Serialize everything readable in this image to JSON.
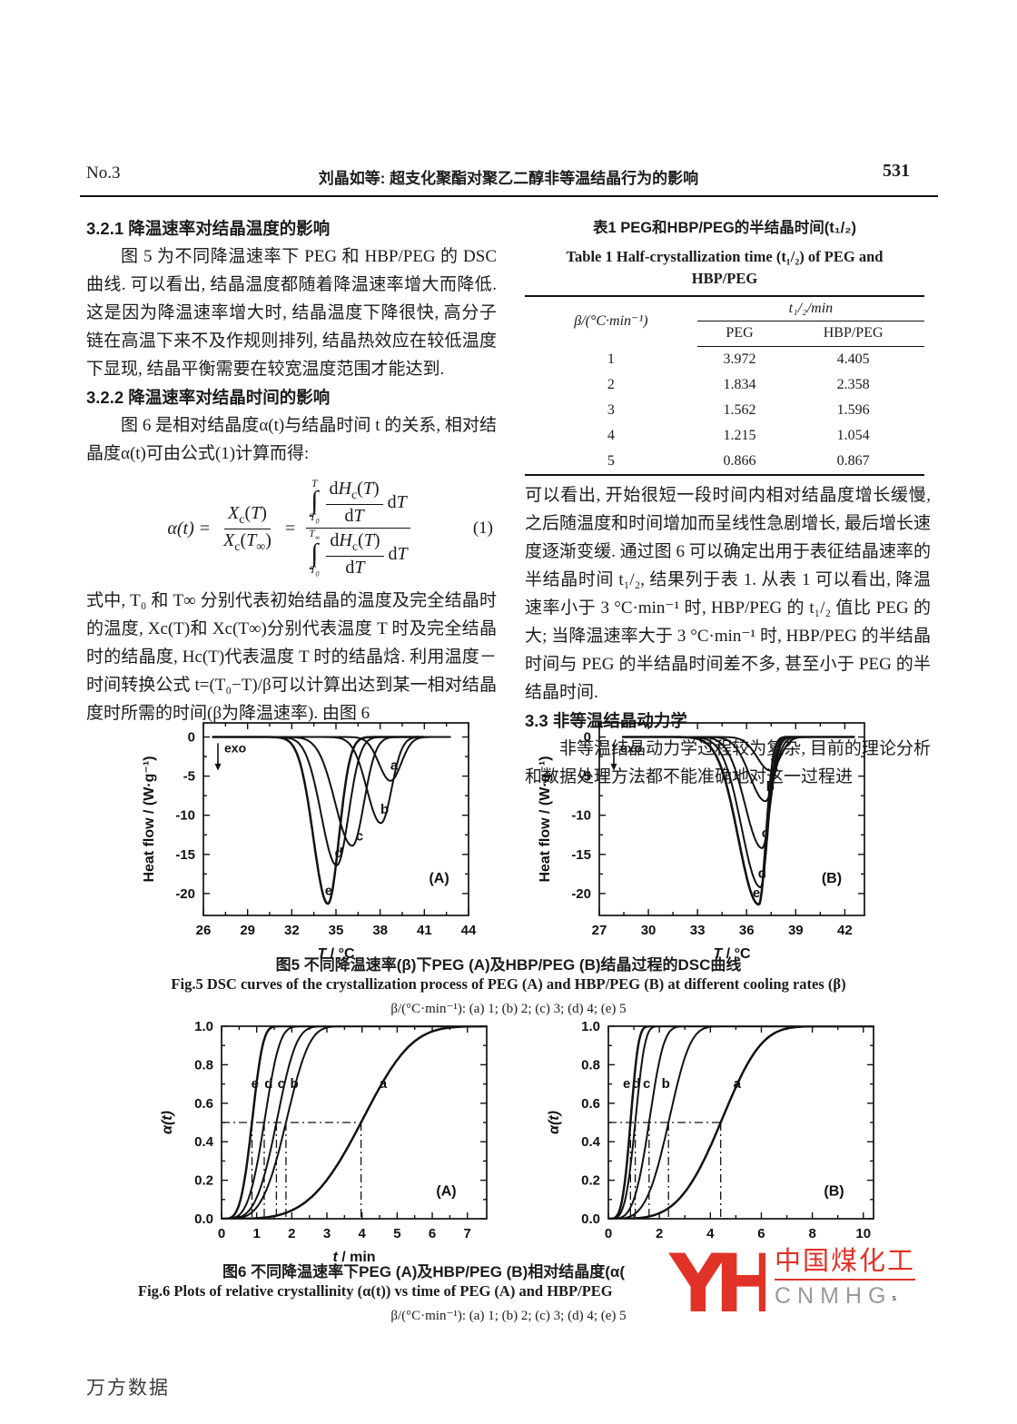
{
  "page": {
    "no": "No.3",
    "header_title": "刘晶如等: 超支化聚酯对聚乙二醇非等温结晶行为的影响",
    "page_number": "531",
    "footer": "万方数据"
  },
  "left": {
    "h321": "3.2.1  降温速率对结晶温度的影响",
    "p321": "图 5 为不同降温速率下 PEG 和 HBP/PEG 的 DSC 曲线. 可以看出, 结晶温度都随着降温速率增大而降低. 这是因为降温速率增大时, 结晶温度下降很快, 高分子链在高温下来不及作规则排列, 结晶热效应在较低温度下显现, 结晶平衡需要在较宽温度范围才能达到.",
    "h322": "3.2.2  降温速率对结晶时间的影响",
    "p322": "图 6 是相对结晶度α(t)与结晶时间 t 的关系, 相对结晶度α(t)可由公式(1)计算而得:",
    "p_after_eq": "式中, T₀ 和 T∞ 分别代表初始结晶的温度及完全结晶时的温度, Xc(T)和 Xc(T∞)分别代表温度 T 时及完全结晶时的结晶度, Hc(T)代表温度 T 时的结晶焓. 利用温度－时间转换公式 t=(T₀−T)/β可以计算出达到某一相对结晶度时所需的时间(β为降温速率). 由图 6"
  },
  "eq": {
    "alpha": "α(t)",
    "equals": "=",
    "X": "X",
    "sub_c": "c",
    "T": "T",
    "lp": "(",
    "rp": ")",
    "inf": "∞",
    "sub0": "0",
    "int": "∫",
    "d": "d",
    "H": "H",
    "no": "(1)"
  },
  "right": {
    "p1": "可以看出, 开始很短一段时间内相对结晶度增长缓慢, 之后随温度和时间增加而呈线性急剧增长, 最后增长速度逐渐变缓. 通过图 6 可以确定出用于表征结晶速率的半结晶时间 t₁/₂, 结果列于表 1. 从表 1 可以看出, 降温速率小于 3 °C·min⁻¹ 时, HBP/PEG 的 t₁/₂ 值比 PEG 的大; 当降温速率大于 3 °C·min⁻¹ 时, HBP/PEG 的半结晶时间与 PEG 的半结晶时间差不多, 甚至小于 PEG 的半结晶时间.",
    "h33": "3.3  非等温结晶动力学",
    "p33": "非等温结晶动力学过程较为复杂, 目前的理论分析和数据处理方法都不能准确地对这一过程进"
  },
  "table1": {
    "title_zh": "表1  PEG和HBP/PEG的半结晶时间(t₁/₂)",
    "title_en1": "Table 1  Half-crystallization time (t₁/₂) of PEG and",
    "title_en2": "HBP/PEG",
    "col_beta": "β/(°C·min⁻¹)",
    "col_t12": "t₁/₂/min",
    "col_peg": "PEG",
    "col_hbp": "HBP/PEG",
    "rows": [
      {
        "beta": "1",
        "peg": "3.972",
        "hbp": "4.405"
      },
      {
        "beta": "2",
        "peg": "1.834",
        "hbp": "2.358"
      },
      {
        "beta": "3",
        "peg": "1.562",
        "hbp": "1.596"
      },
      {
        "beta": "4",
        "peg": "1.215",
        "hbp": "1.054"
      },
      {
        "beta": "5",
        "peg": "0.866",
        "hbp": "0.867"
      }
    ]
  },
  "fig5": {
    "caption_zh": "图5  不同降温速率(β)下PEG (A)及HBP/PEG (B)结晶过程的DSC曲线",
    "caption_en": "Fig.5  DSC curves of the crystallization process of PEG (A) and HBP/PEG (B) at different cooling rates (β)",
    "caption_cond": "β/(°C·min⁻¹): (a) 1; (b) 2; (c) 3; (d) 4; (e) 5"
  },
  "fig6": {
    "caption_zh": "图6  不同降温速率下PEG (A)及HBP/PEG (B)相对结晶度(α(",
    "caption_en": "Fig.6  Plots of relative crystallinity (α(t)) vs time of PEG (A) and HBP/PEG",
    "caption_cond": "β/(°C·min⁻¹): (a) 1; (b) 2; (c) 3; (d) 4; (e) 5"
  },
  "watermark": {
    "monogram": "YH",
    "brand_zh": "中国煤化工",
    "brand_en": "CNMHG",
    "mark": "ˢ",
    "brand_color": "#e03226",
    "en_color": "#9a9a9a"
  },
  "chart_data": [
    {
      "id": "fig5A",
      "type": "dsc",
      "panel": "(A)",
      "panel_at": [
        42.0,
        -18.6
      ],
      "xlim": [
        26,
        44
      ],
      "ylim": [
        -22.8,
        1.8
      ],
      "xticks": [
        26,
        29,
        32,
        35,
        38,
        41,
        44
      ],
      "xtick_labels": [
        "26",
        "29",
        "32",
        "35",
        "38",
        "41",
        "44"
      ],
      "yticks": [
        0,
        -5,
        -10,
        -15,
        -20
      ],
      "ytick_labels": [
        "0",
        "-5",
        "-10",
        "-15",
        "-20"
      ],
      "xlabel_var": "T",
      "xlabel_rest": " / °C",
      "ylabel": "Heat flow / (W·g⁻¹)",
      "ylabel_italic": false,
      "exo_label": "exo",
      "curves": [
        {
          "name": "a",
          "center": 38.7,
          "depth": 5.6,
          "sl": 0.78,
          "sr": 0.72,
          "x0": 33.6,
          "x1": 42.8,
          "lw": 2,
          "label_at": [
            38.95,
            -4.2
          ]
        },
        {
          "name": "b",
          "center": 38.05,
          "depth": 11.0,
          "sl": 0.95,
          "sr": 0.72,
          "x0": 31.2,
          "x1": 42.8,
          "lw": 2,
          "label_at": [
            38.3,
            -9.8
          ]
        },
        {
          "name": "c",
          "center": 36.1,
          "depth": 13.9,
          "sl": 1.15,
          "sr": 0.8,
          "x0": 26.6,
          "x1": 41.6,
          "lw": 2,
          "label_at": [
            36.6,
            -13.2
          ]
        },
        {
          "name": "d",
          "center": 35.05,
          "depth": 16.4,
          "sl": 1.05,
          "sr": 0.8,
          "x0": 26.6,
          "x1": 41.2,
          "lw": 2,
          "label_at": [
            35.2,
            -15.4
          ]
        },
        {
          "name": "e",
          "center": 34.45,
          "depth": 21.3,
          "sl": 0.98,
          "sr": 0.75,
          "x0": 26.6,
          "x1": 41.0,
          "lw": 2.5,
          "label_at": [
            34.5,
            -20.2
          ]
        }
      ]
    },
    {
      "id": "fig5B",
      "type": "dsc",
      "panel": "(B)",
      "panel_at": [
        41.2,
        -18.6
      ],
      "xlim": [
        27,
        43.2
      ],
      "ylim": [
        -22.8,
        1.8
      ],
      "xticks": [
        27,
        30,
        33,
        36,
        39,
        42
      ],
      "xtick_labels": [
        "27",
        "30",
        "33",
        "36",
        "39",
        "42"
      ],
      "yticks": [
        0,
        -5,
        -10,
        -15,
        -20
      ],
      "ytick_labels": [
        "0",
        "-5",
        "-10",
        "-15",
        "-20"
      ],
      "xlabel_var": "T",
      "xlabel_rest": " / °C",
      "ylabel": "Heat flow / (W·g⁻¹)",
      "ylabel_italic": false,
      "exo_label": "exo",
      "curves": [
        {
          "name": "a",
          "center": 37.45,
          "depth": 4.3,
          "sl": 0.8,
          "sr": 0.6,
          "x0": 28.4,
          "x1": 42.6,
          "lw": 2,
          "label_at": [
            37.7,
            -3.2
          ]
        },
        {
          "name": "b",
          "center": 37.15,
          "depth": 8.2,
          "sl": 0.95,
          "sr": 0.55,
          "x0": 28.4,
          "x1": 42.6,
          "lw": 2,
          "label_at": [
            37.45,
            -6.9
          ]
        },
        {
          "name": "c",
          "center": 36.95,
          "depth": 14.2,
          "sl": 1.05,
          "sr": 0.5,
          "x0": 28.4,
          "x1": 42.6,
          "lw": 2,
          "label_at": [
            37.15,
            -12.8
          ]
        },
        {
          "name": "d",
          "center": 36.85,
          "depth": 19.2,
          "sl": 1.15,
          "sr": 0.46,
          "x0": 28.4,
          "x1": 42.6,
          "lw": 2,
          "label_at": [
            36.95,
            -18.0
          ]
        },
        {
          "name": "e",
          "center": 36.75,
          "depth": 21.4,
          "sl": 1.25,
          "sr": 0.43,
          "x0": 28.4,
          "x1": 42.6,
          "lw": 2.6,
          "label_at": [
            36.6,
            -20.5
          ]
        }
      ]
    },
    {
      "id": "fig6A",
      "type": "sigmoid",
      "panel": "(A)",
      "panel_at": [
        6.4,
        0.12
      ],
      "xlim": [
        0,
        7.55
      ],
      "ylim": [
        0,
        1.0
      ],
      "xticks": [
        0,
        1,
        2,
        3,
        4,
        5,
        6,
        7
      ],
      "xtick_labels": [
        "0",
        "1",
        "2",
        "3",
        "4",
        "5",
        "6",
        "7"
      ],
      "yticks": [
        0,
        0.2,
        0.4,
        0.6,
        0.8,
        1.0
      ],
      "ytick_labels": [
        "0.0",
        "0.2",
        "0.4",
        "0.6",
        "0.8",
        "1.0"
      ],
      "xlabel_var": "t",
      "xlabel_rest": " / min",
      "ylabel": "α(t)",
      "ylabel_italic": true,
      "avrami_n": 4,
      "guide_y": 0.5,
      "curves": [
        {
          "name": "e",
          "t_half": 0.866,
          "lw": 2.5,
          "label_at": [
            0.95,
            0.68
          ]
        },
        {
          "name": "d",
          "t_half": 1.215,
          "lw": 2,
          "label_at": [
            1.34,
            0.68
          ]
        },
        {
          "name": "c",
          "t_half": 1.562,
          "lw": 2,
          "label_at": [
            1.7,
            0.68
          ]
        },
        {
          "name": "b",
          "t_half": 1.834,
          "lw": 2,
          "label_at": [
            2.07,
            0.68
          ]
        },
        {
          "name": "a",
          "t_half": 3.972,
          "lw": 2.5,
          "label_at": [
            4.6,
            0.68
          ]
        }
      ]
    },
    {
      "id": "fig6B",
      "type": "sigmoid",
      "panel": "(B)",
      "panel_at": [
        8.85,
        0.12
      ],
      "xlim": [
        0,
        10.4
      ],
      "ylim": [
        0,
        1.0
      ],
      "xticks": [
        0,
        2,
        4,
        6,
        8,
        10
      ],
      "xtick_labels": [
        "0",
        "2",
        "4",
        "6",
        "8",
        "10"
      ],
      "yticks": [
        0,
        0.2,
        0.4,
        0.6,
        0.8,
        1.0
      ],
      "ytick_labels": [
        "0.0",
        "0.2",
        "0.4",
        "0.6",
        "0.8",
        "1.0"
      ],
      "xlabel_var": "t",
      "xlabel_rest": " / min",
      "ylabel": "α(t)",
      "ylabel_italic": true,
      "avrami_n": 4,
      "guide_y": 0.5,
      "curves": [
        {
          "name": "e",
          "t_half": 0.867,
          "lw": 2.5,
          "label_at": [
            0.72,
            0.68
          ]
        },
        {
          "name": "d",
          "t_half": 1.054,
          "lw": 2,
          "label_at": [
            1.1,
            0.68
          ]
        },
        {
          "name": "c",
          "t_half": 1.596,
          "lw": 2,
          "label_at": [
            1.5,
            0.68
          ]
        },
        {
          "name": "b",
          "t_half": 2.358,
          "lw": 2,
          "label_at": [
            2.25,
            0.68
          ]
        },
        {
          "name": "a",
          "t_half": 4.405,
          "lw": 2.5,
          "label_at": [
            5.05,
            0.68
          ]
        }
      ]
    }
  ]
}
